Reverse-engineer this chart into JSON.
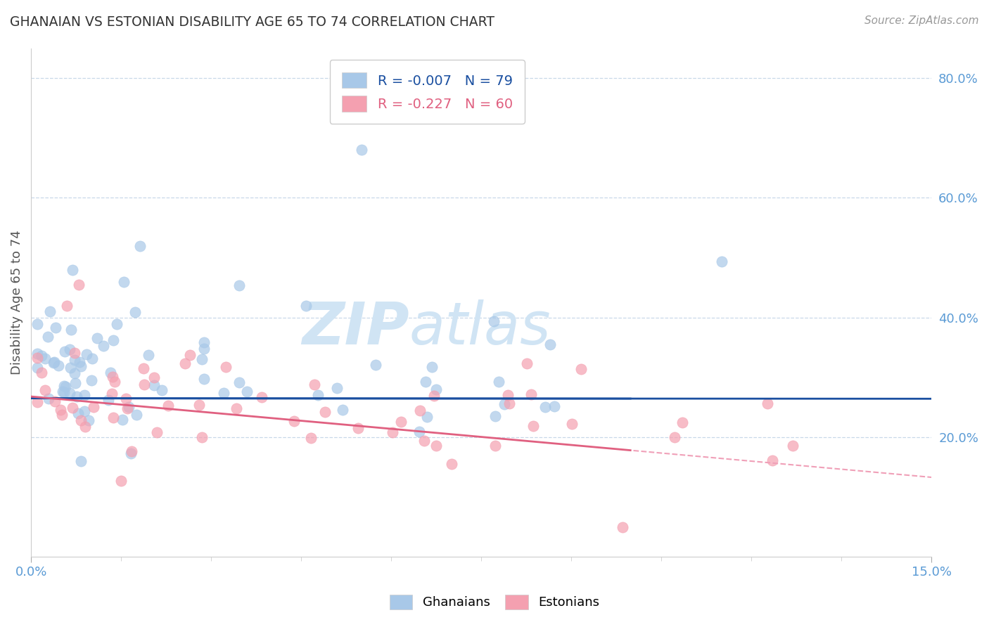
{
  "title": "GHANAIAN VS ESTONIAN DISABILITY AGE 65 TO 74 CORRELATION CHART",
  "source_text": "Source: ZipAtlas.com",
  "ylabel": "Disability Age 65 to 74",
  "xlim": [
    0.0,
    0.15
  ],
  "ylim": [
    0.0,
    0.85
  ],
  "yticks": [
    0.2,
    0.4,
    0.6,
    0.8
  ],
  "ytick_labels": [
    "20.0%",
    "40.0%",
    "60.0%",
    "80.0%"
  ],
  "xtick_labels": [
    "0.0%",
    "15.0%"
  ],
  "xticks": [
    0.0,
    0.15
  ],
  "ghanaian_R": -0.007,
  "ghanaian_N": 79,
  "estonian_R": -0.227,
  "estonian_N": 60,
  "blue_color": "#a8c8e8",
  "pink_color": "#f4a0b0",
  "blue_line_color": "#1a4fa0",
  "pink_line_color": "#e06080",
  "pink_dash_color": "#f0a0b8",
  "watermark_zip": "ZIP",
  "watermark_atlas": "atlas",
  "watermark_color": "#d0e4f4",
  "title_color": "#333333",
  "axis_label_color": "#555555",
  "tick_color": "#5b9bd5",
  "grid_color": "#c8d8e8",
  "background_color": "#ffffff",
  "legend_box_color": "#f0f4f8"
}
